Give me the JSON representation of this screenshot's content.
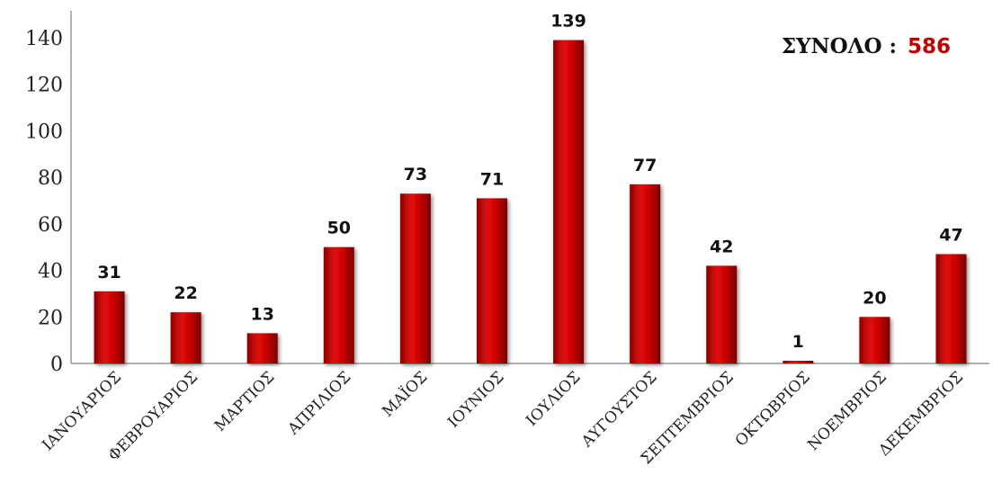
{
  "chart_data": {
    "type": "bar",
    "categories": [
      "ΙΑΝΟΥΑΡΙΟΣ",
      "ΦΕΒΡΟΥΑΡΙΟΣ",
      "ΜΑΡΤΙΟΣ",
      "ΑΠΡΙΛΙΟΣ",
      "ΜΑΪΟΣ",
      "ΙΟΥΝΙΟΣ",
      "ΙΟΥΛΙΟΣ",
      "ΑΥΓΟΥΣΤΟΣ",
      "ΣΕΠΤΕΜΒΡΙΟΣ",
      "ΟΚΤΩΒΡΙΟΣ",
      "ΝΟΕΜΒΡΙΟΣ",
      "ΔΕΚΕΜΒΡΙΟΣ"
    ],
    "values": [
      31,
      22,
      13,
      50,
      73,
      71,
      139,
      77,
      42,
      1,
      20,
      47
    ],
    "title": "",
    "xlabel": "",
    "ylabel": "",
    "ylim": [
      0,
      140
    ],
    "yticks": [
      0,
      20,
      40,
      60,
      80,
      100,
      120,
      140
    ],
    "grid": false,
    "bar_color": "#cc0000",
    "total_label": "ΣΥΝΟΛΟ :",
    "total_value": "586",
    "total_color": "#c00000"
  }
}
